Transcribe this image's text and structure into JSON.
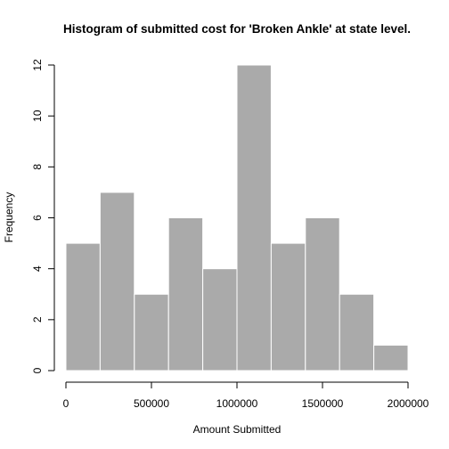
{
  "colors": {
    "bar_fill": "#aaaaaa",
    "bar_border": "#ffffff",
    "axis": "#000000"
  },
  "chart_data": {
    "type": "bar",
    "subtype": "histogram",
    "title": "Histogram of submitted cost for 'Broken Ankle' at state level.",
    "xlabel": "Amount Submitted",
    "ylabel": "Frequency",
    "bins": [
      {
        "start": 0,
        "end": 200000,
        "count": 5
      },
      {
        "start": 200000,
        "end": 400000,
        "count": 7
      },
      {
        "start": 400000,
        "end": 600000,
        "count": 3
      },
      {
        "start": 600000,
        "end": 800000,
        "count": 6
      },
      {
        "start": 800000,
        "end": 1000000,
        "count": 4
      },
      {
        "start": 1000000,
        "end": 1200000,
        "count": 12
      },
      {
        "start": 1200000,
        "end": 1400000,
        "count": 5
      },
      {
        "start": 1400000,
        "end": 1600000,
        "count": 6
      },
      {
        "start": 1600000,
        "end": 1800000,
        "count": 3
      },
      {
        "start": 1800000,
        "end": 2000000,
        "count": 1
      }
    ],
    "xlim": [
      0,
      2000000
    ],
    "ylim": [
      0,
      12
    ],
    "x_ticks": [
      0,
      500000,
      1000000,
      1500000,
      2000000
    ],
    "x_tick_labels": [
      "0",
      "500000",
      "1000000",
      "1500000",
      "2000000"
    ],
    "y_ticks": [
      0,
      2,
      4,
      6,
      8,
      10,
      12
    ],
    "y_tick_labels": [
      "0",
      "2",
      "4",
      "6",
      "8",
      "10",
      "12"
    ],
    "grid": false,
    "legend": "none"
  }
}
